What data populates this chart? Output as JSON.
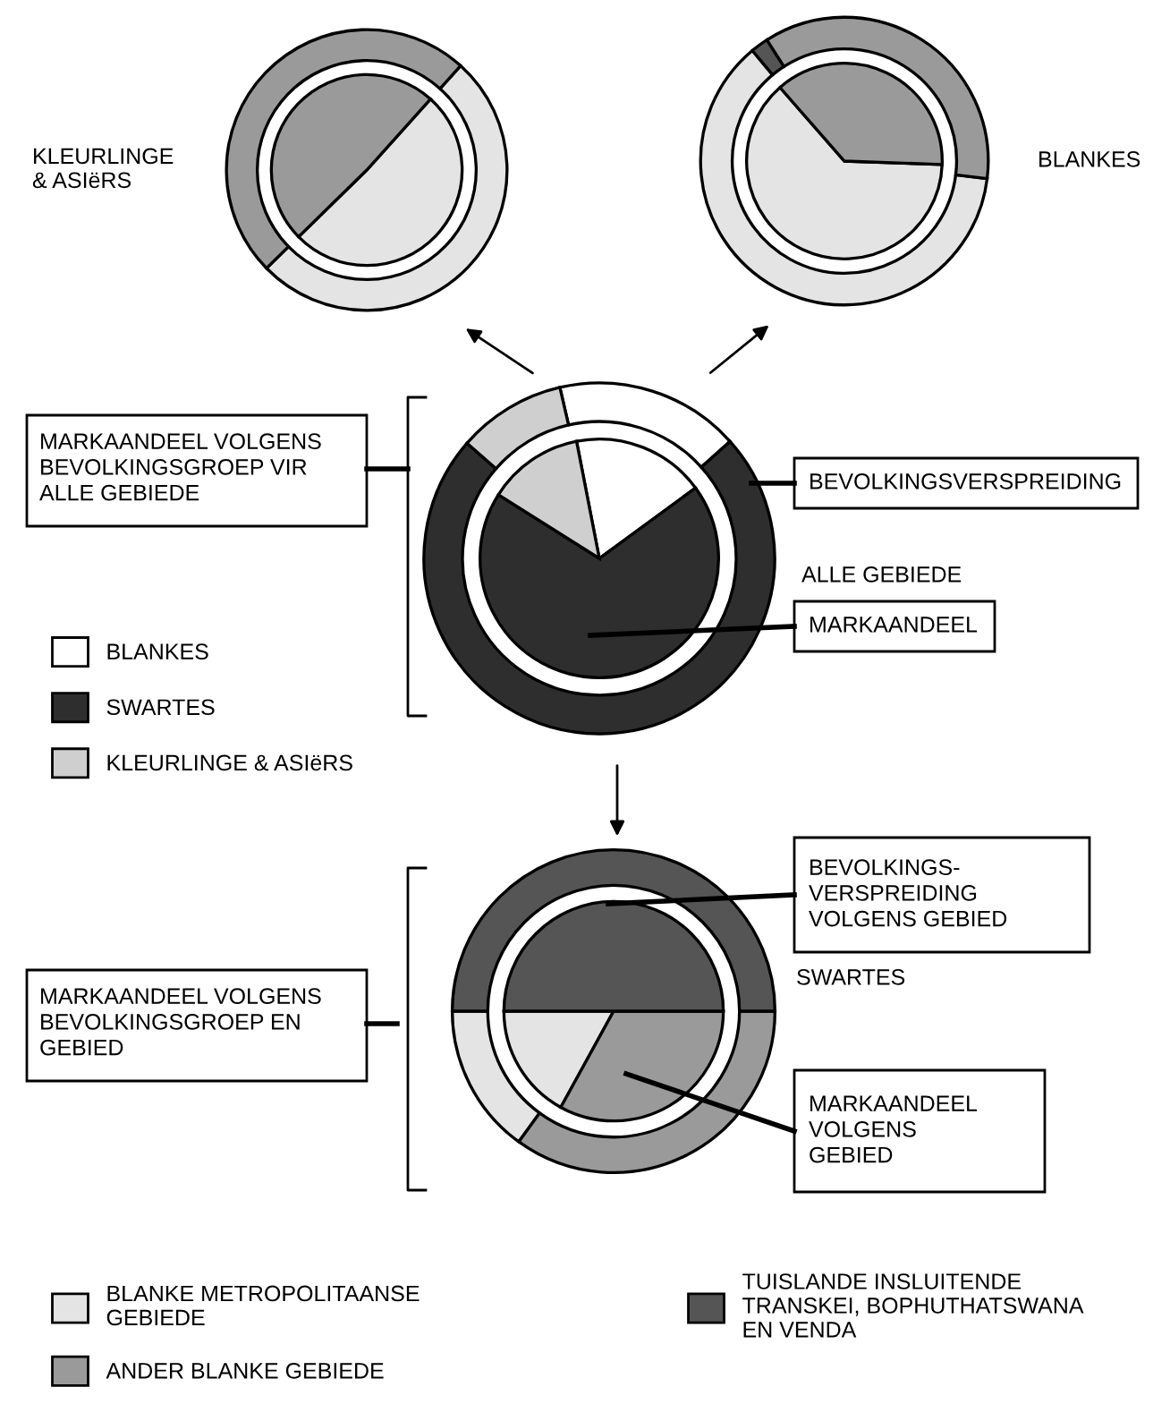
{
  "chart_data": [
    {
      "type": "donut",
      "title": "KLEURLINGE\n& ASIëRS",
      "categories": [
        null,
        null
      ],
      "colors": [
        "#e4e4e4",
        "#9a9a9a"
      ],
      "series": [
        {
          "type": "donut",
          "values": [
            51,
            49
          ]
        },
        {
          "type": "pie",
          "values": [
            51,
            49
          ]
        }
      ]
    },
    {
      "type": "donut",
      "title": "BLANKES",
      "categories": [
        null,
        null,
        null
      ],
      "colors": [
        "#e4e4e4",
        "#555555",
        "#9a9a9a"
      ],
      "series": [
        {
          "type": "donut",
          "values": [
            62,
            2,
            36
          ]
        },
        {
          "type": "pie",
          "values": [
            63,
            null,
            37
          ]
        }
      ]
    },
    {
      "type": "donut",
      "title": "ALLE GEBIEDE",
      "categories": [
        "BLANKES",
        "SWARTES",
        "KLEURLINGE & ASIëRS"
      ],
      "colors": [
        "#ffffff",
        "#2e2e2e",
        "#cfcfcf"
      ],
      "legend": "left",
      "series": [
        {
          "type": "donut",
          "values": [
            17,
            73,
            10
          ]
        },
        {
          "type": "pie",
          "values": [
            18,
            69,
            13
          ]
        }
      ],
      "annotations": [
        "MARKAANDEEL VOLGENS\nBEVOLKINGSGROEP VIR\nALLE GEBIEDE",
        "BEVOLKINGSVERSPREIDING",
        "MARKAANDEEL"
      ]
    },
    {
      "type": "donut",
      "title": "SWARTES",
      "categories": [
        "BLANKE METROPOLITAANSE\nGEBIEDE",
        "ANDER BLANKE GEBIEDE",
        "TUISLANDE INSLUITENDE\nTRANSKEI, BOPHUTHATSWANA\nEN VENDA"
      ],
      "colors": [
        "#e4e4e4",
        "#9a9a9a",
        "#555555"
      ],
      "legend": "bottom",
      "series": [
        {
          "type": "donut",
          "values": [
            15,
            35,
            50
          ]
        },
        {
          "type": "pie",
          "values": [
            17,
            33,
            50
          ]
        }
      ],
      "annotations": [
        "MARKAANDEEL VOLGENS\nBEVOLKINGSGROEP EN\nGEBIED",
        "BEVOLKINGS-\nVERSPREIDING\nVOLGENS GEBIED",
        "MARKAANDEEL\nVOLGENS\nGEBIED"
      ]
    }
  ]
}
